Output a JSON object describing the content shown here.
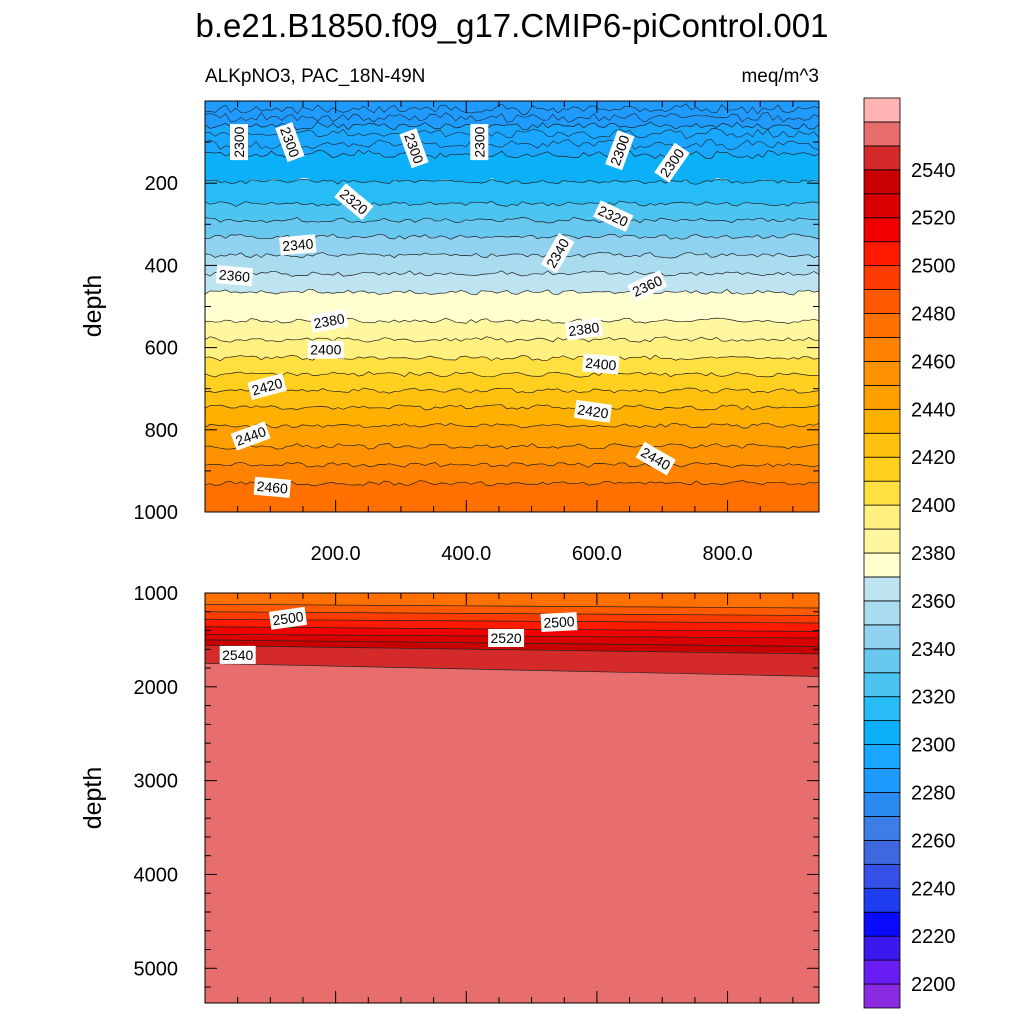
{
  "chart_data": {
    "type": "heatmap",
    "title": "b.e21.B1850.f09_g17.CMIP6-piControl.001",
    "subtitle_left": "ALKpNO3, PAC_18N-49N",
    "subtitle_right": "meq/m^3",
    "colorbar": {
      "levels": [
        2200,
        2210,
        2220,
        2230,
        2240,
        2250,
        2260,
        2270,
        2280,
        2290,
        2300,
        2310,
        2320,
        2330,
        2340,
        2350,
        2360,
        2370,
        2380,
        2390,
        2400,
        2410,
        2420,
        2430,
        2440,
        2450,
        2460,
        2470,
        2480,
        2490,
        2500,
        2510,
        2520,
        2530,
        2540,
        2550
      ],
      "tick_labels": [
        "2200",
        "2220",
        "2240",
        "2260",
        "2280",
        "2300",
        "2320",
        "2340",
        "2360",
        "2380",
        "2400",
        "2420",
        "2440",
        "2460",
        "2480",
        "2500",
        "2520",
        "2540"
      ],
      "colors": [
        "#8a2be2",
        "#6a1df2",
        "#3c18ee",
        "#0a0aff",
        "#1e3cf0",
        "#3550e6",
        "#4068de",
        "#3c7ee6",
        "#2a8af0",
        "#1f9aff",
        "#18a6ff",
        "#0bb0f8",
        "#27bcf6",
        "#4cc4f2",
        "#68c8f0",
        "#90d2f0",
        "#aadcf0",
        "#bee4f2",
        "#ffffd0",
        "#fff6a0",
        "#fff080",
        "#ffe040",
        "#ffd020",
        "#ffc010",
        "#ffb000",
        "#ffa000",
        "#ff9200",
        "#ff8200",
        "#ff7000",
        "#ff5a00",
        "#ff3c00",
        "#ff1a00",
        "#f00000",
        "#d80000",
        "#c80000",
        "#d42a2a",
        "#e86e6e",
        "#ffb4b4"
      ]
    },
    "panels": [
      {
        "xlim": [
          0,
          940
        ],
        "ylim": [
          0,
          1000
        ],
        "y_reversed": true,
        "ylabel": "depth",
        "xticks": [
          200,
          400,
          600,
          800
        ],
        "xtick_labels": [
          "200.0",
          "400.0",
          "600.0",
          "800.0"
        ],
        "yticks": [
          200,
          400,
          600,
          800,
          1000
        ],
        "ytick_labels": [
          "200",
          "400",
          "600",
          "800",
          "1000"
        ],
        "contour_levels": [
          2290,
          2300,
          2310,
          2320,
          2330,
          2340,
          2350,
          2360,
          2370,
          2380,
          2390,
          2400,
          2410,
          2420,
          2430,
          2440,
          2450,
          2460,
          2470
        ],
        "contour_depths": [
          60,
          130,
          196,
          250,
          290,
          330,
          375,
          420,
          465,
          535,
          580,
          625,
          665,
          705,
          745,
          790,
          840,
          885,
          930
        ],
        "contour_labels": [
          {
            "text": "2300",
            "x": 52,
            "depth": 100,
            "angle": -90
          },
          {
            "text": "2300",
            "x": 130,
            "depth": 100,
            "angle": 70
          },
          {
            "text": "2300",
            "x": 320,
            "depth": 115,
            "angle": 70
          },
          {
            "text": "2300",
            "x": 420,
            "depth": 100,
            "angle": -90
          },
          {
            "text": "2300",
            "x": 635,
            "depth": 120,
            "angle": -70
          },
          {
            "text": "2300",
            "x": 715,
            "depth": 150,
            "angle": -55
          },
          {
            "text": "2320",
            "x": 228,
            "depth": 245,
            "angle": 40
          },
          {
            "text": "2320",
            "x": 625,
            "depth": 280,
            "angle": 25
          },
          {
            "text": "2340",
            "x": 142,
            "depth": 350,
            "angle": -5
          },
          {
            "text": "2340",
            "x": 540,
            "depth": 370,
            "angle": -60
          },
          {
            "text": "2360",
            "x": 45,
            "depth": 425,
            "angle": 5
          },
          {
            "text": "2360",
            "x": 677,
            "depth": 450,
            "angle": -25
          },
          {
            "text": "2380",
            "x": 190,
            "depth": 535,
            "angle": -10
          },
          {
            "text": "2380",
            "x": 580,
            "depth": 555,
            "angle": -8
          },
          {
            "text": "2400",
            "x": 185,
            "depth": 605,
            "angle": 0
          },
          {
            "text": "2400",
            "x": 606,
            "depth": 640,
            "angle": 5
          },
          {
            "text": "2420",
            "x": 95,
            "depth": 695,
            "angle": -15
          },
          {
            "text": "2420",
            "x": 594,
            "depth": 755,
            "angle": 8
          },
          {
            "text": "2440",
            "x": 70,
            "depth": 815,
            "angle": -20
          },
          {
            "text": "2440",
            "x": 690,
            "depth": 870,
            "angle": 30
          },
          {
            "text": "2460",
            "x": 103,
            "depth": 940,
            "angle": 5
          }
        ]
      },
      {
        "xlim": [
          0,
          940
        ],
        "ylim": [
          1000,
          5370
        ],
        "y_reversed": true,
        "ylabel": "depth",
        "yticks": [
          1000,
          2000,
          3000,
          4000,
          5000
        ],
        "ytick_labels": [
          "1000",
          "2000",
          "3000",
          "4000",
          "5000"
        ],
        "contour_levels": [
          2480,
          2490,
          2500,
          2510,
          2520,
          2530,
          2540,
          2550
        ],
        "contour_depths_left": [
          1120,
          1200,
          1280,
          1360,
          1440,
          1500,
          1560,
          1750
        ],
        "contour_depths_right": [
          1160,
          1240,
          1320,
          1410,
          1480,
          1570,
          1650,
          1890
        ],
        "contour_labels": [
          {
            "text": "2500",
            "x": 127,
            "depth": 1270,
            "angle": -8
          },
          {
            "text": "2500",
            "x": 542,
            "depth": 1310,
            "angle": -3
          },
          {
            "text": "2520",
            "x": 461,
            "depth": 1480,
            "angle": 0
          },
          {
            "text": "2540",
            "x": 50,
            "depth": 1660,
            "angle": 0
          }
        ]
      }
    ]
  }
}
